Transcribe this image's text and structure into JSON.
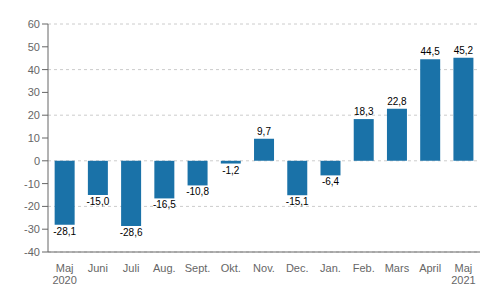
{
  "chart_data": {
    "type": "bar",
    "categories": [
      "Maj\n2020",
      "Juni",
      "Juli",
      "Aug.",
      "Sept.",
      "Okt.",
      "Nov.",
      "Dec.",
      "Jan.",
      "Feb.",
      "Mars",
      "April",
      "Maj\n2021"
    ],
    "values": [
      -28.1,
      -15.0,
      -28.6,
      -16.5,
      -10.8,
      -1.2,
      9.7,
      -15.1,
      -6.4,
      18.3,
      22.8,
      44.5,
      45.2
    ],
    "value_labels": [
      "-28,1",
      "-15,0",
      "-28,6",
      "-16,5",
      "-10,8",
      "-1,2",
      "9,7",
      "-15,1",
      "-6,4",
      "18,3",
      "22,8",
      "44,5",
      "45,2"
    ],
    "color": "#1a72a8",
    "ylim": [
      -40,
      60
    ],
    "yticks": [
      -40,
      -30,
      -20,
      -10,
      0,
      10,
      20,
      30,
      40,
      50,
      60
    ],
    "grid": true,
    "data_labels": true
  }
}
